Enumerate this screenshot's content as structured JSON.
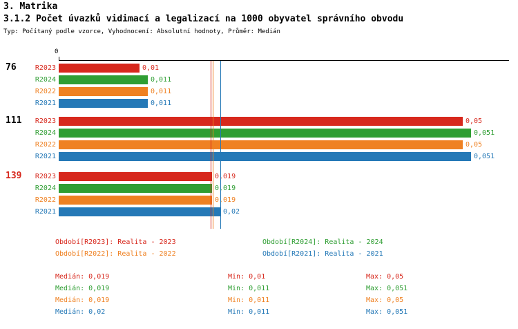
{
  "title": "3. Matrika",
  "subtitle": "3.1.2 Počet úvazků vidimací a legalizací na 1000 obyvatel správního obvodu",
  "meta": "Typ: Počítaný podle vzorce, Vyhodnocení: Absolutní hodnoty, Průměr: Medián",
  "chart_data": {
    "type": "bar",
    "orientation": "horizontal",
    "value_axis": {
      "zero_label": "0",
      "min": 0,
      "max": 0.0558
    },
    "series_order": [
      "R2023",
      "R2024",
      "R2022",
      "R2021"
    ],
    "series_colors": {
      "R2023": "#d7281d",
      "R2024": "#2f9e33",
      "R2022": "#ef8122",
      "R2021": "#2579b7"
    },
    "groups": [
      {
        "label": "76",
        "label_color": "#000000",
        "bars": [
          {
            "series": "R2023",
            "value": 0.01,
            "value_label": "0,01"
          },
          {
            "series": "R2024",
            "value": 0.011,
            "value_label": "0,011"
          },
          {
            "series": "R2022",
            "value": 0.011,
            "value_label": "0,011"
          },
          {
            "series": "R2021",
            "value": 0.011,
            "value_label": "0,011"
          }
        ]
      },
      {
        "label": "111",
        "label_color": "#000000",
        "bars": [
          {
            "series": "R2023",
            "value": 0.05,
            "value_label": "0,05"
          },
          {
            "series": "R2024",
            "value": 0.051,
            "value_label": "0,051"
          },
          {
            "series": "R2022",
            "value": 0.05,
            "value_label": "0,05"
          },
          {
            "series": "R2021",
            "value": 0.051,
            "value_label": "0,051"
          }
        ]
      },
      {
        "label": "139",
        "label_color": "#d7281d",
        "bars": [
          {
            "series": "R2023",
            "value": 0.019,
            "value_label": "0,019"
          },
          {
            "series": "R2024",
            "value": 0.019,
            "value_label": "0,019"
          },
          {
            "series": "R2022",
            "value": 0.019,
            "value_label": "0,019"
          },
          {
            "series": "R2021",
            "value": 0.02,
            "value_label": "0,02"
          }
        ]
      }
    ],
    "median_lines": [
      {
        "series": "R2023",
        "value": 0.019
      },
      {
        "series": "R2024",
        "value": 0.019
      },
      {
        "series": "R2022",
        "value": 0.019
      },
      {
        "series": "R2021",
        "value": 0.02
      }
    ]
  },
  "legend": [
    {
      "series": "R2023",
      "label": "Období[R2023]: Realita - 2023"
    },
    {
      "series": "R2024",
      "label": "Období[R2024]: Realita - 2024"
    },
    {
      "series": "R2022",
      "label": "Období[R2022]: Realita - 2022"
    },
    {
      "series": "R2021",
      "label": "Období[R2021]: Realita - 2021"
    }
  ],
  "stats": [
    {
      "series": "R2023",
      "median": "Medián: 0,019",
      "min": "Min: 0,01",
      "max": "Max: 0,05"
    },
    {
      "series": "R2024",
      "median": "Medián: 0,019",
      "min": "Min: 0,011",
      "max": "Max: 0,051"
    },
    {
      "series": "R2022",
      "median": "Medián: 0,019",
      "min": "Min: 0,011",
      "max": "Max: 0,05"
    },
    {
      "series": "R2021",
      "median": "Medián: 0,02",
      "min": "Min: 0,011",
      "max": "Max: 0,051"
    }
  ]
}
